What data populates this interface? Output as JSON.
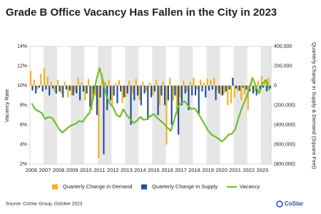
{
  "chart_data": {
    "type": "combo",
    "title": "Grade B Office Vacancy Has Fallen in the City in 2023",
    "ylabel": "Vacancy Rate",
    "y2label": "Quarterly Change in Supply & Demand (Square Feet)",
    "source": "Source: CoStar Group, October 2023",
    "logo": "CoStar",
    "categories": [
      "2006",
      null,
      null,
      null,
      "2007",
      null,
      null,
      null,
      "2008",
      null,
      null,
      null,
      "2009",
      null,
      null,
      null,
      "2010",
      null,
      null,
      null,
      "2011",
      null,
      null,
      null,
      "2012",
      null,
      null,
      null,
      "2013",
      null,
      null,
      null,
      "2014",
      null,
      null,
      null,
      "2015",
      null,
      null,
      null,
      "2016",
      null,
      null,
      null,
      "2017",
      null,
      null,
      null,
      "2018",
      null,
      null,
      null,
      "2019",
      null,
      null,
      null,
      "2020",
      null,
      null,
      null,
      "2021",
      null,
      null,
      null,
      "2022",
      null,
      null,
      null,
      "2023",
      null,
      null
    ],
    "ylim": [
      2,
      14
    ],
    "yticks": [
      {
        "value": 2,
        "label": "2%"
      },
      {
        "value": 4,
        "label": "4%"
      },
      {
        "value": 6,
        "label": "6%"
      },
      {
        "value": 8,
        "label": "8%"
      },
      {
        "value": 10,
        "label": "10%"
      },
      {
        "value": 12,
        "label": "12%"
      },
      {
        "value": 14,
        "label": "14%"
      }
    ],
    "y2lim": [
      -800000,
      400000
    ],
    "y2ticks": [
      {
        "value": 400000,
        "label": "400,000"
      },
      {
        "value": 200000,
        "label": "200,000"
      },
      0,
      {
        "value": -200000,
        "label": "(200,000)"
      },
      {
        "value": -400000,
        "label": "(400,000)"
      },
      {
        "value": -600000,
        "label": "(600,000)"
      },
      {
        "value": -800000,
        "label": "(800,000)"
      }
    ],
    "series": [
      {
        "name": "Quarterly Change in Demand",
        "type": "bar",
        "axis": "y2",
        "color": "#f2b21b",
        "values": [
          150000,
          60000,
          -40000,
          120000,
          180000,
          90000,
          40000,
          -60000,
          60000,
          -80000,
          40000,
          -120000,
          -100000,
          -60000,
          80000,
          30000,
          -150000,
          70000,
          -250000,
          -100000,
          -740000,
          120000,
          40000,
          60000,
          -200000,
          20000,
          60000,
          -180000,
          -120000,
          50000,
          -80000,
          70000,
          -150000,
          40000,
          -60000,
          30000,
          -100000,
          60000,
          -200000,
          40000,
          -600000,
          80000,
          -150000,
          -300000,
          -120000,
          50000,
          -60000,
          40000,
          80000,
          -40000,
          60000,
          30000,
          70000,
          60000,
          80000,
          -50000,
          -100000,
          -80000,
          -200000,
          -180000,
          -120000,
          -60000,
          -150000,
          -90000,
          -250000,
          40000,
          -60000,
          50000,
          100000,
          60000,
          80000
        ]
      },
      {
        "name": "Quarterly Change in Supply",
        "type": "bar",
        "axis": "y2",
        "color": "#1f4e9c",
        "values": [
          -50000,
          -80000,
          -20000,
          -60000,
          -40000,
          -100000,
          -30000,
          -80000,
          -60000,
          -120000,
          -40000,
          -50000,
          -100000,
          -80000,
          -150000,
          -60000,
          -80000,
          -220000,
          -100000,
          -300000,
          -120000,
          -700000,
          -250000,
          -150000,
          -100000,
          -180000,
          -60000,
          -120000,
          -80000,
          -400000,
          -150000,
          -100000,
          -200000,
          -80000,
          -350000,
          -120000,
          -60000,
          -300000,
          -100000,
          -200000,
          -150000,
          -400000,
          -100000,
          -500000,
          -200000,
          -80000,
          -250000,
          -100000,
          -100000,
          -300000,
          -60000,
          -120000,
          -50000,
          -40000,
          -150000,
          -80000,
          -100000,
          -60000,
          -40000,
          80000,
          -30000,
          -50000,
          -20000,
          -40000,
          -60000,
          -80000,
          -100000,
          -40000,
          -20000,
          -60000,
          -30000
        ]
      },
      {
        "name": "Vacancy",
        "type": "line",
        "axis": "y",
        "color": "#6cbf2e",
        "values": [
          8.2,
          7.6,
          7.4,
          7.2,
          6.6,
          6.8,
          6.7,
          6.2,
          5.6,
          5.2,
          5.5,
          5.8,
          6.0,
          6.1,
          6.4,
          6.3,
          6.8,
          7.2,
          8.5,
          10.5,
          11.8,
          10.5,
          9.0,
          8.2,
          7.8,
          7.0,
          6.8,
          7.6,
          7.0,
          6.6,
          6.2,
          6.4,
          6.8,
          6.5,
          6.6,
          6.9,
          7.1,
          6.7,
          6.4,
          6.1,
          5.7,
          5.4,
          6.5,
          7.8,
          8.2,
          8.4,
          8.0,
          7.6,
          7.7,
          7.2,
          6.6,
          6.0,
          5.4,
          5.0,
          4.8,
          4.6,
          4.3,
          4.6,
          5.0,
          5.1,
          5.6,
          6.8,
          7.8,
          8.6,
          9.6,
          10.8,
          10.0,
          9.2,
          10.2,
          10.6,
          9.5
        ]
      }
    ]
  }
}
